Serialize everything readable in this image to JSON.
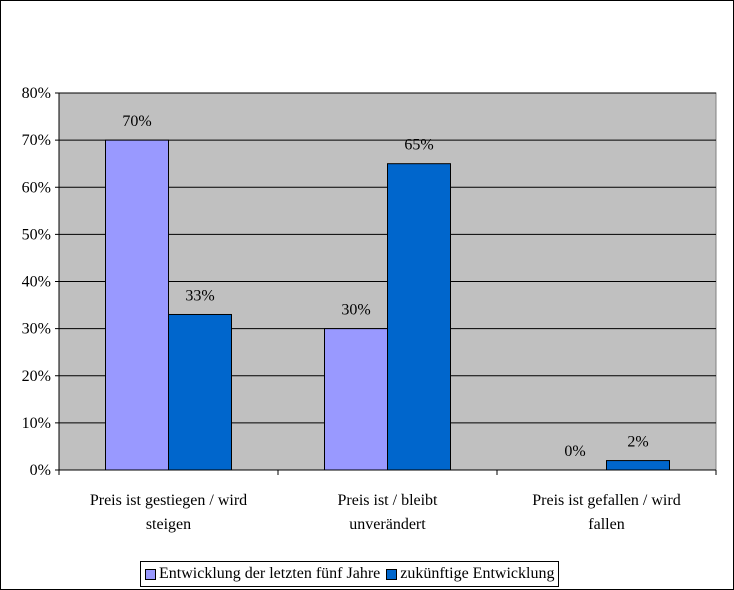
{
  "chart_data": {
    "type": "bar",
    "categories": [
      [
        "Preis ist gestiegen / wird",
        "steigen"
      ],
      [
        "Preis ist  / bleibt",
        "unverändert"
      ],
      [
        "Preis ist gefallen / wird",
        "fallen"
      ]
    ],
    "series": [
      {
        "name": "Entwicklung der letzten fünf Jahre",
        "values": [
          70,
          30,
          0
        ],
        "labels": [
          "70%",
          "30%",
          "0%"
        ],
        "color": "#9999ff"
      },
      {
        "name": "zukünftige Entwicklung",
        "values": [
          33,
          65,
          2
        ],
        "labels": [
          "33%",
          "65%",
          "2%"
        ],
        "color": "#0066cc"
      }
    ],
    "yticks": [
      "0%",
      "10%",
      "20%",
      "30%",
      "40%",
      "50%",
      "60%",
      "70%",
      "80%"
    ],
    "ylim": [
      0,
      80
    ],
    "grid": true,
    "plot_background": "#c0c0c0",
    "legend_position": "bottom"
  }
}
